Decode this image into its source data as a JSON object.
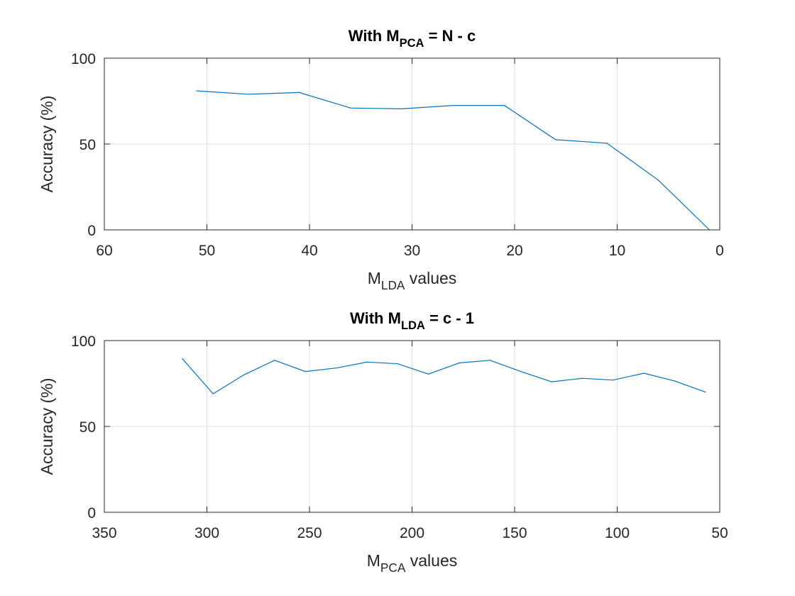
{
  "chart_data": [
    {
      "type": "line",
      "title": {
        "main": "With M",
        "sub": "PCA",
        "rest": " = N - c"
      },
      "xlabel": {
        "main": "M",
        "sub": "LDA",
        "rest": " values"
      },
      "ylabel": "Accuracy (%)",
      "xlim": [
        60,
        0
      ],
      "ylim": [
        0,
        100
      ],
      "x_reversed": true,
      "grid": true,
      "xticks": [
        "60",
        "50",
        "40",
        "30",
        "20",
        "10",
        "0"
      ],
      "yticks": [
        "0",
        "50",
        "100"
      ],
      "line_color": "#0072BD",
      "series": [
        {
          "x": [
            51,
            46,
            41,
            36,
            31,
            26,
            21,
            16,
            11,
            6,
            1
          ],
          "y": [
            81,
            79,
            80,
            71,
            70.5,
            72.5,
            72.5,
            52.5,
            50.5,
            29,
            0
          ]
        }
      ]
    },
    {
      "type": "line",
      "title": {
        "main": "With M",
        "sub": "LDA",
        "rest": " = c - 1"
      },
      "xlabel": {
        "main": "M",
        "sub": "PCA",
        "rest": " values"
      },
      "ylabel": "Accuracy (%)",
      "xlim": [
        350,
        50
      ],
      "ylim": [
        0,
        100
      ],
      "x_reversed": true,
      "grid": true,
      "xticks": [
        "350",
        "300",
        "250",
        "200",
        "150",
        "100",
        "50"
      ],
      "yticks": [
        "0",
        "50",
        "100"
      ],
      "line_color": "#0072BD",
      "series": [
        {
          "x": [
            312,
            297,
            282,
            267,
            252,
            237,
            222,
            207,
            192,
            177,
            162,
            147,
            132,
            117,
            102,
            87,
            72,
            57
          ],
          "y": [
            89.5,
            69,
            80,
            88.5,
            82,
            84,
            87.5,
            86.5,
            80.5,
            87,
            88.5,
            82,
            76,
            78,
            77,
            81,
            76.5,
            70
          ]
        }
      ]
    }
  ]
}
